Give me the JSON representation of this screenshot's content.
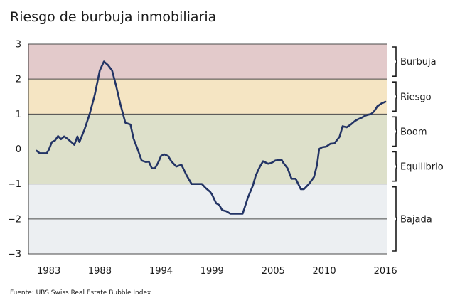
{
  "chart_data": {
    "type": "line",
    "title": "Riesgo de burbuja inmobiliaria",
    "source": "Fuente: UBS Swiss Real Estate Bubble Index",
    "xlim": [
      1981,
      2016.2
    ],
    "ylim": [
      -3,
      3
    ],
    "x_ticks": [
      1983,
      1988,
      1994,
      1999,
      2005,
      2010,
      2016
    ],
    "y_ticks": [
      3,
      2,
      1,
      0,
      -1,
      -2,
      -3
    ],
    "y_tick_labels": [
      "3",
      "2",
      "1",
      "0",
      "−1",
      "−2",
      "−3"
    ],
    "grid": true,
    "zones": [
      {
        "name": "Burbuja",
        "from": 2,
        "to": 3,
        "color": "#e3cacb"
      },
      {
        "name": "Riesgo",
        "from": 1,
        "to": 2,
        "color": "#f5e5c3"
      },
      {
        "name": "Boom",
        "from": 0,
        "to": 1,
        "color": "#dde0ca"
      },
      {
        "name": "Equilibrio",
        "from": -1,
        "to": 0,
        "color": "#dde0ca"
      },
      {
        "name": "Bajada",
        "from": -3,
        "to": -1,
        "color": "#eceff2"
      }
    ],
    "series": [
      {
        "color": "#233465",
        "x": [
          1981.8,
          1982.1,
          1982.5,
          1982.8,
          1983.0,
          1983.3,
          1983.6,
          1983.9,
          1984.2,
          1984.5,
          1984.8,
          1985.2,
          1985.5,
          1985.8,
          1986.0,
          1986.5,
          1987.0,
          1987.5,
          1988.0,
          1988.4,
          1988.8,
          1989.2,
          1989.6,
          1990.0,
          1990.5,
          1991.0,
          1991.3,
          1991.7,
          1992.1,
          1992.5,
          1992.8,
          1993.1,
          1993.4,
          1993.7,
          1994.0,
          1994.3,
          1994.7,
          1995.0,
          1995.5,
          1996.0,
          1996.5,
          1997.0,
          1997.5,
          1998.0,
          1998.4,
          1998.8,
          1999.0,
          1999.4,
          1999.7,
          2000.0,
          2000.4,
          2000.8,
          2001.2,
          2001.6,
          2002.0,
          2002.5,
          2003.0,
          2003.3,
          2003.7,
          2004.0,
          2004.5,
          2004.8,
          2005.2,
          2005.5,
          2005.8,
          2006.0,
          2006.4,
          2006.8,
          2007.2,
          2007.7,
          2008.0,
          2008.5,
          2009.0,
          2009.3,
          2009.5,
          2009.8,
          2010.2,
          2010.6,
          2011.0,
          2011.5,
          2011.8,
          2012.2,
          2012.6,
          2013.0,
          2013.3,
          2013.7,
          2014.0,
          2014.3,
          2014.6,
          2014.9,
          2015.2,
          2015.6,
          2016.0
        ],
        "y": [
          -0.05,
          -0.12,
          -0.12,
          -0.12,
          -0.02,
          0.2,
          0.24,
          0.37,
          0.28,
          0.36,
          0.3,
          0.2,
          0.12,
          0.36,
          0.2,
          0.56,
          1.0,
          1.55,
          2.25,
          2.5,
          2.4,
          2.25,
          1.8,
          1.3,
          0.75,
          0.7,
          0.3,
          0.0,
          -0.33,
          -0.37,
          -0.36,
          -0.55,
          -0.55,
          -0.4,
          -0.2,
          -0.15,
          -0.2,
          -0.35,
          -0.5,
          -0.45,
          -0.75,
          -1.0,
          -1.0,
          -1.0,
          -1.12,
          -1.22,
          -1.3,
          -1.55,
          -1.6,
          -1.75,
          -1.78,
          -1.85,
          -1.85,
          -1.85,
          -1.85,
          -1.4,
          -1.05,
          -0.75,
          -0.5,
          -0.35,
          -0.42,
          -0.4,
          -0.33,
          -0.32,
          -0.3,
          -0.4,
          -0.55,
          -0.85,
          -0.85,
          -1.15,
          -1.15,
          -1.0,
          -0.8,
          -0.45,
          0.0,
          0.05,
          0.07,
          0.15,
          0.16,
          0.35,
          0.65,
          0.62,
          0.7,
          0.8,
          0.85,
          0.9,
          0.95,
          0.98,
          1.0,
          1.08,
          1.22,
          1.3,
          1.35
        ]
      }
    ]
  }
}
